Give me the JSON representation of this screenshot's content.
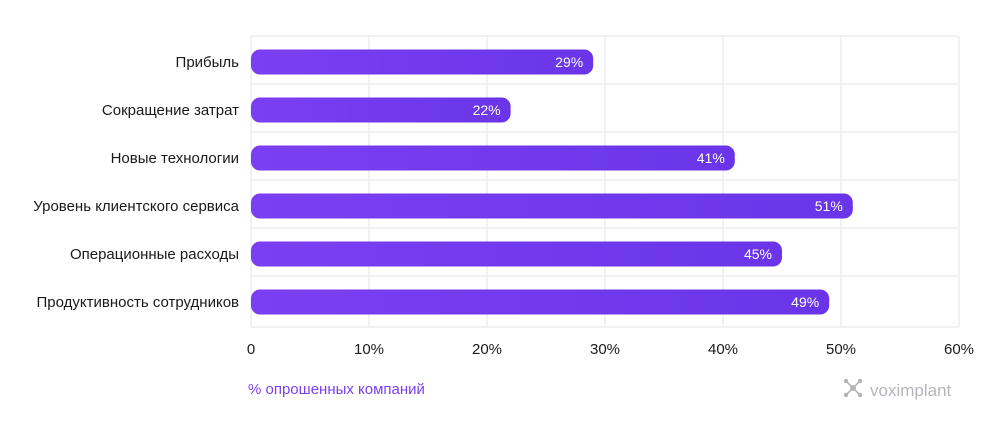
{
  "chart_data": {
    "type": "bar",
    "orientation": "horizontal",
    "categories": [
      "Прибыль",
      "Сокращение затрат",
      "Новые технологии",
      "Уровень клиентского сервиса",
      "Операционные расходы",
      "Продуктивность сотрудников"
    ],
    "values": [
      29,
      22,
      41,
      51,
      45,
      49
    ],
    "data_labels": [
      "29%",
      "22%",
      "41%",
      "51%",
      "45%",
      "49%"
    ],
    "xlabel": "% опрошенных компаний",
    "ylabel": "",
    "xlim": [
      0,
      60
    ],
    "xticks": [
      0,
      10,
      20,
      30,
      40,
      50,
      60
    ],
    "xtick_labels": [
      "0",
      "10%",
      "20%",
      "30%",
      "40%",
      "50%",
      "60%"
    ],
    "grid": true,
    "bar_color": "#7b3ff2",
    "bar_color_end": "#6a35e8"
  },
  "logo": {
    "text": "voximplant",
    "icon": "voximplant-logo-icon"
  },
  "colors": {
    "accent": "#7b3ff2",
    "grid": "#e6e6ea",
    "logo": "#b4b4bc"
  }
}
